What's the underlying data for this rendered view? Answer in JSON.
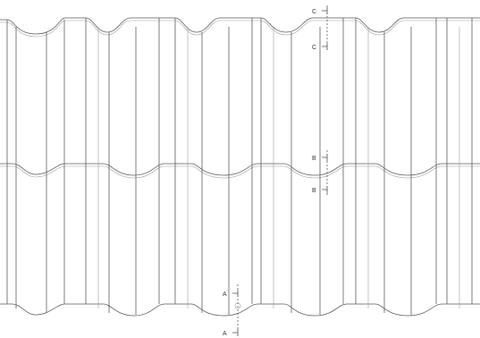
{
  "drawing": {
    "sections": [
      {
        "id": "C",
        "labels": [
          "C",
          "C"
        ]
      },
      {
        "id": "B",
        "labels": [
          "B",
          "B"
        ]
      },
      {
        "id": "A",
        "labels": [
          "A",
          "A"
        ]
      }
    ]
  }
}
